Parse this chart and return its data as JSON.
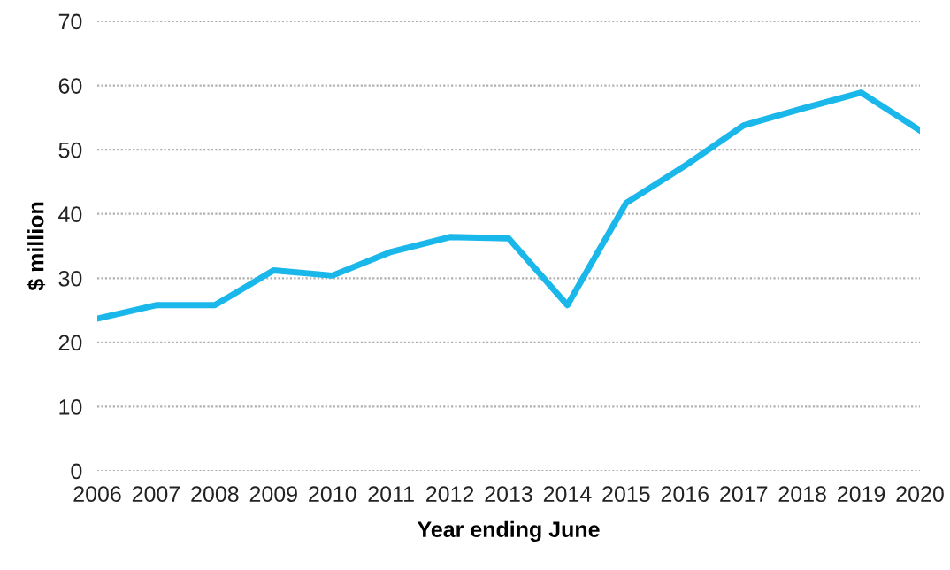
{
  "chart_data": {
    "type": "line",
    "xlabel": "Year ending June",
    "ylabel": "$ million",
    "categories": [
      "2006",
      "2007",
      "2008",
      "2009",
      "2010",
      "2011",
      "2012",
      "2013",
      "2014",
      "2015",
      "2016",
      "2017",
      "2018",
      "2019",
      "2020"
    ],
    "series": [
      {
        "color": "#1ab7ea",
        "values": [
          23.7,
          25.8,
          25.8,
          31.2,
          30.4,
          34.1,
          36.4,
          36.2,
          25.8,
          41.7,
          47.5,
          53.8,
          56.4,
          58.9,
          53.0
        ]
      }
    ],
    "ylim": [
      0,
      70
    ],
    "yticks": [
      0,
      10,
      20,
      30,
      40,
      50,
      60,
      70
    ],
    "grid": "y",
    "line_style": "solid",
    "marker": "none"
  }
}
